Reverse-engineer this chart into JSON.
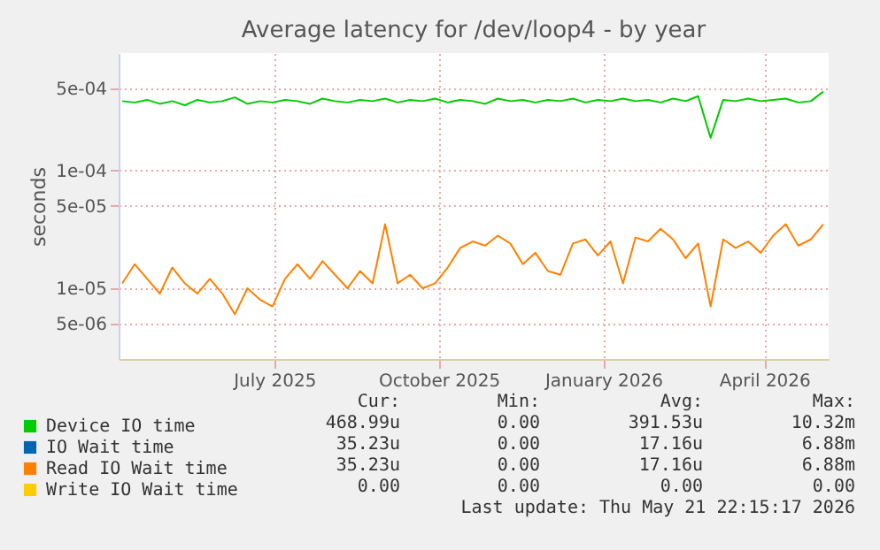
{
  "chart_data": {
    "type": "line",
    "title": "Average latency for /dev/loop4 - by year",
    "ylabel": "seconds",
    "log": true,
    "grid": true,
    "legend": "bottom left",
    "marker": "none",
    "line_style": "solid",
    "x": [
      "2025-04-07",
      "2025-04-14",
      "2025-04-21",
      "2025-04-28",
      "2025-05-05",
      "2025-05-12",
      "2025-05-19",
      "2025-05-26",
      "2025-06-02",
      "2025-06-09",
      "2025-06-16",
      "2025-06-23",
      "2025-06-30",
      "2025-07-07",
      "2025-07-14",
      "2025-07-21",
      "2025-07-28",
      "2025-08-04",
      "2025-08-11",
      "2025-08-18",
      "2025-08-25",
      "2025-09-01",
      "2025-09-08",
      "2025-09-15",
      "2025-09-22",
      "2025-09-29",
      "2025-10-06",
      "2025-10-13",
      "2025-10-20",
      "2025-10-27",
      "2025-11-03",
      "2025-11-10",
      "2025-11-17",
      "2025-11-24",
      "2025-12-01",
      "2025-12-08",
      "2025-12-15",
      "2025-12-22",
      "2025-12-29",
      "2026-01-05",
      "2026-01-12",
      "2026-01-19",
      "2026-01-26",
      "2026-02-02",
      "2026-02-09",
      "2026-02-16",
      "2026-02-23",
      "2026-03-02",
      "2026-03-09",
      "2026-03-16",
      "2026-03-23",
      "2026-03-30",
      "2026-04-06",
      "2026-04-13",
      "2026-04-20",
      "2026-04-27",
      "2026-05-04"
    ],
    "xlim": [
      "2025-04-05",
      "2026-05-07"
    ],
    "xticks": [
      {
        "value": "2025-07-01",
        "label": "July 2025"
      },
      {
        "value": "2025-10-01",
        "label": "October 2025"
      },
      {
        "value": "2026-01-01",
        "label": "January 2026"
      },
      {
        "value": "2026-04-01",
        "label": "April 2026"
      }
    ],
    "ylim": [
      2.5e-06,
      0.001
    ],
    "yticks": [
      {
        "value": 5e-06,
        "label": "5e-06"
      },
      {
        "value": 1e-05,
        "label": "1e-05"
      },
      {
        "value": 5e-05,
        "label": "5e-05"
      },
      {
        "value": 0.0001,
        "label": "1e-04"
      },
      {
        "value": 0.0005,
        "label": "5e-04"
      }
    ],
    "series": [
      {
        "name": "Device IO time",
        "color": "#00cc00",
        "values": [
          0.00039,
          0.00038,
          0.0004,
          0.00037,
          0.00039,
          0.00036,
          0.0004,
          0.00038,
          0.00039,
          0.00042,
          0.00037,
          0.00039,
          0.00038,
          0.0004,
          0.00039,
          0.00037,
          0.00041,
          0.00039,
          0.00038,
          0.0004,
          0.00039,
          0.00041,
          0.00038,
          0.0004,
          0.00039,
          0.00041,
          0.00038,
          0.0004,
          0.00039,
          0.00037,
          0.00041,
          0.00039,
          0.0004,
          0.00038,
          0.0004,
          0.00039,
          0.00041,
          0.00038,
          0.0004,
          0.00039,
          0.00041,
          0.00039,
          0.0004,
          0.00038,
          0.00041,
          0.00039,
          0.00043,
          0.00019,
          0.0004,
          0.00039,
          0.00041,
          0.00039,
          0.0004,
          0.00041,
          0.00038,
          0.00039,
          0.00047
        ]
      },
      {
        "name": "IO Wait time",
        "color": "#0066b3",
        "values": [
          null,
          null,
          null,
          null,
          null,
          null,
          null,
          null,
          null,
          null,
          null,
          null,
          null,
          null,
          null,
          null,
          null,
          null,
          null,
          null,
          null,
          null,
          null,
          null,
          null,
          null,
          null,
          null,
          null,
          null,
          null,
          null,
          null,
          null,
          null,
          null,
          null,
          null,
          null,
          null,
          null,
          null,
          null,
          null,
          null,
          null,
          null,
          null,
          null,
          null,
          null,
          null,
          null,
          null,
          null,
          null,
          null
        ]
      },
      {
        "name": "Read IO Wait time",
        "color": "#ff8000",
        "values": [
          1.1e-05,
          1.6e-05,
          1.2e-05,
          9e-06,
          1.5e-05,
          1.1e-05,
          9e-06,
          1.2e-05,
          9e-06,
          6e-06,
          1e-05,
          8e-06,
          7e-06,
          1.2e-05,
          1.6e-05,
          1.2e-05,
          1.7e-05,
          1.3e-05,
          1e-05,
          1.4e-05,
          1.1e-05,
          3.5e-05,
          1.1e-05,
          1.3e-05,
          1e-05,
          1.1e-05,
          1.5e-05,
          2.2e-05,
          2.5e-05,
          2.3e-05,
          2.8e-05,
          2.4e-05,
          1.6e-05,
          2e-05,
          1.4e-05,
          1.3e-05,
          2.4e-05,
          2.6e-05,
          1.9e-05,
          2.5e-05,
          1.1e-05,
          2.7e-05,
          2.5e-05,
          3.2e-05,
          2.6e-05,
          1.8e-05,
          2.4e-05,
          7e-06,
          2.6e-05,
          2.2e-05,
          2.5e-05,
          2e-05,
          2.8e-05,
          3.5e-05,
          2.3e-05,
          2.6e-05,
          3.5e-05
        ]
      },
      {
        "name": "Write IO Wait time",
        "color": "#ffcc00",
        "values": [
          null,
          null,
          null,
          null,
          null,
          null,
          null,
          null,
          null,
          null,
          null,
          null,
          null,
          null,
          null,
          null,
          null,
          null,
          null,
          null,
          null,
          null,
          null,
          null,
          null,
          null,
          null,
          null,
          null,
          null,
          null,
          null,
          null,
          null,
          null,
          null,
          null,
          null,
          null,
          null,
          null,
          null,
          null,
          null,
          null,
          null,
          null,
          null,
          null,
          null,
          null,
          null,
          null,
          null,
          null,
          null,
          null
        ]
      }
    ],
    "annotations": [
      "Cur:",
      "Min:",
      "Avg:",
      "Max:",
      "468.99u",
      "0.00",
      "391.53u",
      "10.32m",
      "35.23u",
      "0.00",
      "17.16u",
      "6.88m",
      "35.23u",
      "0.00",
      "17.16u",
      "6.88m",
      "0.00",
      "0.00",
      "0.00",
      "0.00",
      "Last update: Thu May 21 22:15:17 2026"
    ]
  }
}
